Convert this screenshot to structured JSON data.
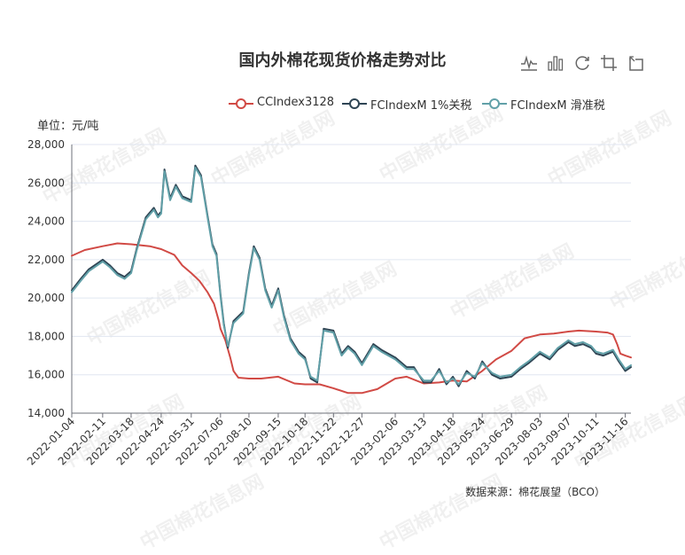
{
  "title": "国内外棉花现货价格走势对比",
  "source": "数据来源：棉花展望（BCO）",
  "toolbox": [
    {
      "name": "line-chart-icon"
    },
    {
      "name": "bar-chart-icon"
    },
    {
      "name": "restore-icon"
    },
    {
      "name": "crop-icon"
    },
    {
      "name": "undo-icon"
    }
  ],
  "watermark": "中国棉花信息网",
  "chart_data": {
    "type": "line",
    "ylabel": "单位：元/吨",
    "ylim": [
      14000,
      28000
    ],
    "yticks": [
      14000,
      16000,
      18000,
      20000,
      22000,
      24000,
      26000,
      28000
    ],
    "ytick_labels": [
      "14,000",
      "16,000",
      "18,000",
      "20,000",
      "22,000",
      "24,000",
      "26,000",
      "28,000"
    ],
    "xrange": [
      "2022-01-04",
      "2023-11-23"
    ],
    "xticks": [
      "2022-01-04",
      "2022-02-11",
      "2022-03-18",
      "2022-04-24",
      "2022-05-31",
      "2022-07-06",
      "2022-08-10",
      "2022-09-15",
      "2022-10-18",
      "2022-11-22",
      "2022-12-27",
      "2023-02-06",
      "2023-03-13",
      "2023-04-18",
      "2023-05-24",
      "2023-06-29",
      "2023-08-03",
      "2023-09-07",
      "2023-10-11",
      "2023-11-16"
    ],
    "grid": true,
    "legend_position": "top-right",
    "series": [
      {
        "name": "CCIndex3128",
        "color": "#d14a45",
        "points": [
          [
            "2022-01-04",
            22200
          ],
          [
            "2022-01-20",
            22500
          ],
          [
            "2022-02-11",
            22700
          ],
          [
            "2022-03-01",
            22850
          ],
          [
            "2022-03-18",
            22800
          ],
          [
            "2022-04-10",
            22700
          ],
          [
            "2022-04-24",
            22550
          ],
          [
            "2022-05-10",
            22250
          ],
          [
            "2022-05-20",
            21700
          ],
          [
            "2022-05-31",
            21300
          ],
          [
            "2022-06-10",
            20900
          ],
          [
            "2022-06-20",
            20300
          ],
          [
            "2022-06-28",
            19700
          ],
          [
            "2022-07-04",
            18800
          ],
          [
            "2022-07-06",
            18400
          ],
          [
            "2022-07-12",
            17800
          ],
          [
            "2022-07-18",
            16900
          ],
          [
            "2022-07-22",
            16200
          ],
          [
            "2022-07-28",
            15850
          ],
          [
            "2022-08-10",
            15800
          ],
          [
            "2022-08-25",
            15800
          ],
          [
            "2022-09-15",
            15900
          ],
          [
            "2022-10-05",
            15550
          ],
          [
            "2022-10-18",
            15500
          ],
          [
            "2022-11-05",
            15500
          ],
          [
            "2022-11-22",
            15300
          ],
          [
            "2022-12-10",
            15050
          ],
          [
            "2022-12-27",
            15050
          ],
          [
            "2023-01-15",
            15250
          ],
          [
            "2023-02-06",
            15800
          ],
          [
            "2023-02-20",
            15900
          ],
          [
            "2023-03-13",
            15550
          ],
          [
            "2023-04-01",
            15600
          ],
          [
            "2023-04-18",
            15700
          ],
          [
            "2023-05-05",
            15650
          ],
          [
            "2023-05-24",
            16200
          ],
          [
            "2023-06-10",
            16800
          ],
          [
            "2023-06-29",
            17250
          ],
          [
            "2023-07-15",
            17900
          ],
          [
            "2023-08-03",
            18100
          ],
          [
            "2023-08-20",
            18150
          ],
          [
            "2023-09-07",
            18250
          ],
          [
            "2023-09-20",
            18300
          ],
          [
            "2023-10-11",
            18250
          ],
          [
            "2023-10-25",
            18200
          ],
          [
            "2023-11-01",
            18100
          ],
          [
            "2023-11-06",
            17600
          ],
          [
            "2023-11-10",
            17100
          ],
          [
            "2023-11-16",
            17000
          ],
          [
            "2023-11-23",
            16900
          ]
        ]
      },
      {
        "name": "FCIndexM 1%关税",
        "color": "#2f4554",
        "points": [
          [
            "2022-01-04",
            20400
          ],
          [
            "2022-01-15",
            21000
          ],
          [
            "2022-01-25",
            21500
          ],
          [
            "2022-02-11",
            22000
          ],
          [
            "2022-02-20",
            21700
          ],
          [
            "2022-03-01",
            21300
          ],
          [
            "2022-03-10",
            21100
          ],
          [
            "2022-03-18",
            21400
          ],
          [
            "2022-03-25",
            22600
          ],
          [
            "2022-04-05",
            24200
          ],
          [
            "2022-04-15",
            24700
          ],
          [
            "2022-04-20",
            24300
          ],
          [
            "2022-04-24",
            24500
          ],
          [
            "2022-04-28",
            26700
          ],
          [
            "2022-05-05",
            25200
          ],
          [
            "2022-05-12",
            25900
          ],
          [
            "2022-05-20",
            25300
          ],
          [
            "2022-05-31",
            25100
          ],
          [
            "2022-06-05",
            26900
          ],
          [
            "2022-06-12",
            26400
          ],
          [
            "2022-06-20",
            24300
          ],
          [
            "2022-06-26",
            22800
          ],
          [
            "2022-07-01",
            22300
          ],
          [
            "2022-07-06",
            20200
          ],
          [
            "2022-07-10",
            18700
          ],
          [
            "2022-07-15",
            17400
          ],
          [
            "2022-07-22",
            18800
          ],
          [
            "2022-08-03",
            19300
          ],
          [
            "2022-08-10",
            21300
          ],
          [
            "2022-08-16",
            22700
          ],
          [
            "2022-08-23",
            22100
          ],
          [
            "2022-08-30",
            20500
          ],
          [
            "2022-09-07",
            19600
          ],
          [
            "2022-09-15",
            20500
          ],
          [
            "2022-09-22",
            19100
          ],
          [
            "2022-09-30",
            17900
          ],
          [
            "2022-10-10",
            17200
          ],
          [
            "2022-10-18",
            16900
          ],
          [
            "2022-10-25",
            15800
          ],
          [
            "2022-11-02",
            15600
          ],
          [
            "2022-11-10",
            18400
          ],
          [
            "2022-11-22",
            18300
          ],
          [
            "2022-12-02",
            17100
          ],
          [
            "2022-12-10",
            17500
          ],
          [
            "2022-12-18",
            17200
          ],
          [
            "2022-12-27",
            16600
          ],
          [
            "2023-01-10",
            17600
          ],
          [
            "2023-01-20",
            17300
          ],
          [
            "2023-02-06",
            16900
          ],
          [
            "2023-02-20",
            16400
          ],
          [
            "2023-03-01",
            16400
          ],
          [
            "2023-03-13",
            15600
          ],
          [
            "2023-03-22",
            15600
          ],
          [
            "2023-04-01",
            16300
          ],
          [
            "2023-04-10",
            15500
          ],
          [
            "2023-04-18",
            15900
          ],
          [
            "2023-04-25",
            15400
          ],
          [
            "2023-05-05",
            16200
          ],
          [
            "2023-05-15",
            15800
          ],
          [
            "2023-05-24",
            16700
          ],
          [
            "2023-06-05",
            16000
          ],
          [
            "2023-06-15",
            15800
          ],
          [
            "2023-06-29",
            15900
          ],
          [
            "2023-07-10",
            16300
          ],
          [
            "2023-07-20",
            16600
          ],
          [
            "2023-08-03",
            17100
          ],
          [
            "2023-08-15",
            16800
          ],
          [
            "2023-08-25",
            17300
          ],
          [
            "2023-09-07",
            17700
          ],
          [
            "2023-09-15",
            17500
          ],
          [
            "2023-09-25",
            17600
          ],
          [
            "2023-10-05",
            17400
          ],
          [
            "2023-10-11",
            17100
          ],
          [
            "2023-10-20",
            17000
          ],
          [
            "2023-11-01",
            17200
          ],
          [
            "2023-11-08",
            16700
          ],
          [
            "2023-11-16",
            16200
          ],
          [
            "2023-11-23",
            16400
          ]
        ]
      },
      {
        "name": "FCIndexM 滑准税",
        "color": "#61a0a8",
        "points": [
          [
            "2022-01-04",
            20300
          ],
          [
            "2022-01-15",
            20900
          ],
          [
            "2022-01-25",
            21400
          ],
          [
            "2022-02-11",
            21900
          ],
          [
            "2022-02-20",
            21600
          ],
          [
            "2022-03-01",
            21200
          ],
          [
            "2022-03-10",
            21000
          ],
          [
            "2022-03-18",
            21300
          ],
          [
            "2022-03-25",
            22500
          ],
          [
            "2022-04-05",
            24100
          ],
          [
            "2022-04-15",
            24600
          ],
          [
            "2022-04-20",
            24200
          ],
          [
            "2022-04-24",
            24400
          ],
          [
            "2022-04-28",
            26600
          ],
          [
            "2022-05-05",
            25100
          ],
          [
            "2022-05-12",
            25800
          ],
          [
            "2022-05-20",
            25200
          ],
          [
            "2022-05-31",
            25000
          ],
          [
            "2022-06-05",
            26800
          ],
          [
            "2022-06-12",
            26300
          ],
          [
            "2022-06-20",
            24200
          ],
          [
            "2022-06-26",
            22700
          ],
          [
            "2022-07-01",
            22200
          ],
          [
            "2022-07-06",
            20100
          ],
          [
            "2022-07-10",
            18600
          ],
          [
            "2022-07-15",
            17500
          ],
          [
            "2022-07-22",
            18700
          ],
          [
            "2022-08-03",
            19200
          ],
          [
            "2022-08-10",
            21200
          ],
          [
            "2022-08-16",
            22600
          ],
          [
            "2022-08-23",
            22000
          ],
          [
            "2022-08-30",
            20400
          ],
          [
            "2022-09-07",
            19500
          ],
          [
            "2022-09-15",
            20400
          ],
          [
            "2022-09-22",
            19000
          ],
          [
            "2022-09-30",
            17800
          ],
          [
            "2022-10-10",
            17100
          ],
          [
            "2022-10-18",
            16800
          ],
          [
            "2022-10-25",
            15900
          ],
          [
            "2022-11-02",
            15700
          ],
          [
            "2022-11-10",
            18300
          ],
          [
            "2022-11-22",
            18200
          ],
          [
            "2022-12-02",
            17000
          ],
          [
            "2022-12-10",
            17400
          ],
          [
            "2022-12-18",
            17100
          ],
          [
            "2022-12-27",
            16500
          ],
          [
            "2023-01-10",
            17500
          ],
          [
            "2023-01-20",
            17200
          ],
          [
            "2023-02-06",
            16800
          ],
          [
            "2023-02-20",
            16300
          ],
          [
            "2023-03-01",
            16300
          ],
          [
            "2023-03-13",
            15700
          ],
          [
            "2023-03-22",
            15700
          ],
          [
            "2023-04-01",
            16200
          ],
          [
            "2023-04-10",
            15600
          ],
          [
            "2023-04-18",
            15800
          ],
          [
            "2023-04-25",
            15500
          ],
          [
            "2023-05-05",
            16100
          ],
          [
            "2023-05-15",
            15900
          ],
          [
            "2023-05-24",
            16600
          ],
          [
            "2023-06-05",
            16100
          ],
          [
            "2023-06-15",
            15900
          ],
          [
            "2023-06-29",
            16000
          ],
          [
            "2023-07-10",
            16400
          ],
          [
            "2023-07-20",
            16700
          ],
          [
            "2023-08-03",
            17200
          ],
          [
            "2023-08-15",
            16900
          ],
          [
            "2023-08-25",
            17400
          ],
          [
            "2023-09-07",
            17800
          ],
          [
            "2023-09-15",
            17600
          ],
          [
            "2023-09-25",
            17700
          ],
          [
            "2023-10-05",
            17500
          ],
          [
            "2023-10-11",
            17200
          ],
          [
            "2023-10-20",
            17100
          ],
          [
            "2023-11-01",
            17300
          ],
          [
            "2023-11-08",
            16800
          ],
          [
            "2023-11-16",
            16300
          ],
          [
            "2023-11-23",
            16500
          ]
        ]
      }
    ]
  }
}
